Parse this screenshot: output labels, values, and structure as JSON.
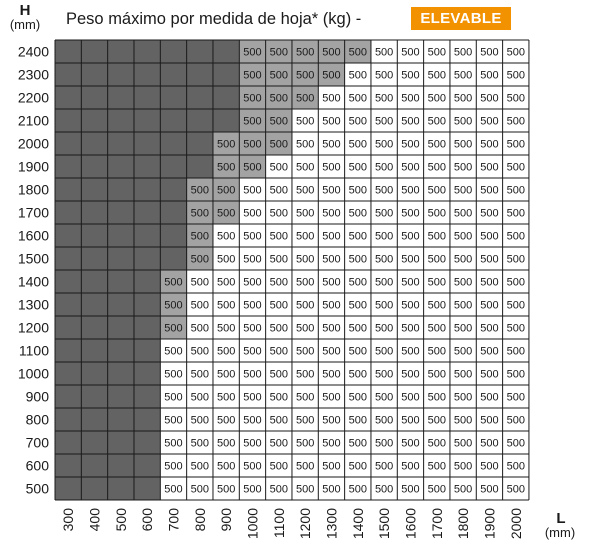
{
  "title": "Peso máximo por medida de hoja* (kg) -",
  "badge": "ELEVABLE",
  "colors": {
    "badge": "#f39200",
    "dark_cell": "#636363",
    "mid_cell": "#a3a3a3",
    "white_cell": "#ffffff",
    "line": "#1a1a1a"
  },
  "chart_data": {
    "type": "heatmap",
    "title": "Peso máximo por medida de hoja* (kg) - ELEVABLE",
    "ylabel": "H",
    "yunit": "(mm)",
    "xlabel": "L",
    "xunit": "(mm)",
    "x": [
      300,
      400,
      500,
      600,
      700,
      800,
      900,
      1000,
      1100,
      1200,
      1300,
      1400,
      1500,
      1600,
      1700,
      1800,
      1900,
      2000
    ],
    "y": [
      2400,
      2300,
      2200,
      2100,
      2000,
      1900,
      1800,
      1700,
      1600,
      1500,
      1400,
      1300,
      1200,
      1100,
      1000,
      900,
      800,
      700,
      600,
      500
    ],
    "cell_value": "500",
    "rows": [
      {
        "H": 2400,
        "values_from_L": 1000,
        "shaded_values_up_to_L": 1400
      },
      {
        "H": 2300,
        "values_from_L": 1000,
        "shaded_values_up_to_L": 1300
      },
      {
        "H": 2200,
        "values_from_L": 1000,
        "shaded_values_up_to_L": 1200
      },
      {
        "H": 2100,
        "values_from_L": 1000,
        "shaded_values_up_to_L": 1100
      },
      {
        "H": 2000,
        "values_from_L": 900,
        "shaded_values_up_to_L": 1100
      },
      {
        "H": 1900,
        "values_from_L": 900,
        "shaded_values_up_to_L": 1000
      },
      {
        "H": 1800,
        "values_from_L": 800,
        "shaded_values_up_to_L": 900
      },
      {
        "H": 1700,
        "values_from_L": 800,
        "shaded_values_up_to_L": 900
      },
      {
        "H": 1600,
        "values_from_L": 800,
        "shaded_values_up_to_L": 800
      },
      {
        "H": 1500,
        "values_from_L": 800,
        "shaded_values_up_to_L": 800
      },
      {
        "H": 1400,
        "values_from_L": 700,
        "shaded_values_up_to_L": 700
      },
      {
        "H": 1300,
        "values_from_L": 700,
        "shaded_values_up_to_L": 700
      },
      {
        "H": 1200,
        "values_from_L": 700,
        "shaded_values_up_to_L": 700
      },
      {
        "H": 1100,
        "values_from_L": 700,
        "shaded_values_up_to_L": null
      },
      {
        "H": 1000,
        "values_from_L": 700,
        "shaded_values_up_to_L": null
      },
      {
        "H": 900,
        "values_from_L": 700,
        "shaded_values_up_to_L": null
      },
      {
        "H": 800,
        "values_from_L": 700,
        "shaded_values_up_to_L": null
      },
      {
        "H": 700,
        "values_from_L": 700,
        "shaded_values_up_to_L": null
      },
      {
        "H": 600,
        "values_from_L": 700,
        "shaded_values_up_to_L": null
      },
      {
        "H": 500,
        "values_from_L": 700,
        "shaded_values_up_to_L": null
      }
    ]
  }
}
